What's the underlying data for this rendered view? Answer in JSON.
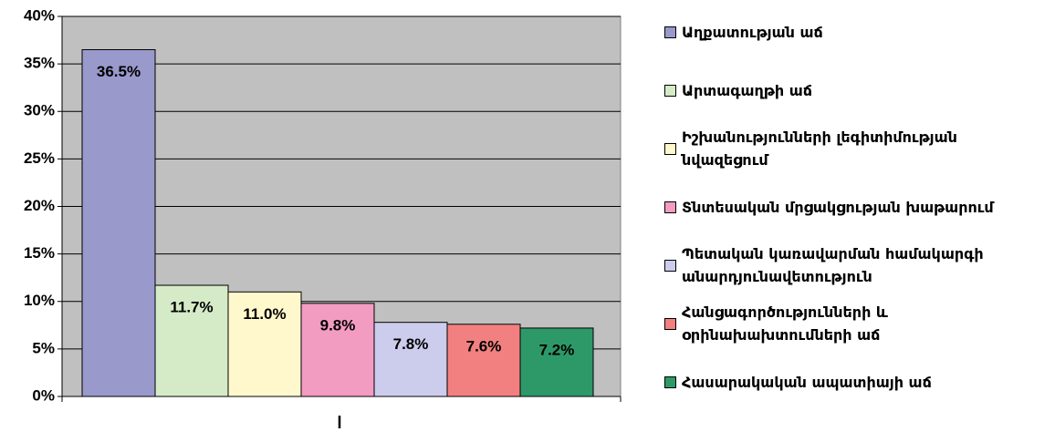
{
  "chart_data": {
    "type": "bar",
    "series": [
      {
        "name": "Աղքատության աճ",
        "color": "#9999cc",
        "values": [
          36.5
        ],
        "value_labels": [
          "36.5%"
        ]
      },
      {
        "name": "Արտագաղթի աճ",
        "color": "#d5ebc8",
        "values": [
          11.7
        ],
        "value_labels": [
          "11.7%"
        ]
      },
      {
        "name": "Իշխանությունների լեգիտիմության նվազեցում",
        "color": "#fff8cc",
        "values": [
          11.0
        ],
        "value_labels": [
          "11.0%"
        ]
      },
      {
        "name": "Տնտեսական մրցակցության խաթարում",
        "color": "#f29cc2",
        "values": [
          9.8
        ],
        "value_labels": [
          "9.8%"
        ]
      },
      {
        "name": "Պետական կառավարման համակարգի անարդյունավետություն",
        "color": "#ccccec",
        "values": [
          7.8
        ],
        "value_labels": [
          "7.8%"
        ]
      },
      {
        "name": "Հանցագործությունների և օրինախախտումների աճ",
        "color": "#f28080",
        "values": [
          7.6
        ],
        "value_labels": [
          "7.6%"
        ]
      },
      {
        "name": "Հասարակական ապատիայի աճ",
        "color": "#2e9968",
        "values": [
          7.2
        ],
        "value_labels": [
          "7.2%"
        ]
      }
    ],
    "ylim": [
      0,
      40
    ],
    "yticks": [
      {
        "value": 0,
        "label": "0%"
      },
      {
        "value": 5,
        "label": "5%"
      },
      {
        "value": 10,
        "label": "10%"
      },
      {
        "value": 15,
        "label": "15%"
      },
      {
        "value": 20,
        "label": "20%"
      },
      {
        "value": 25,
        "label": "25%"
      },
      {
        "value": 30,
        "label": "30%"
      },
      {
        "value": 35,
        "label": "35%"
      },
      {
        "value": 40,
        "label": "40%"
      }
    ],
    "grid": true,
    "background": "#c0c0c0",
    "legend": "right"
  }
}
